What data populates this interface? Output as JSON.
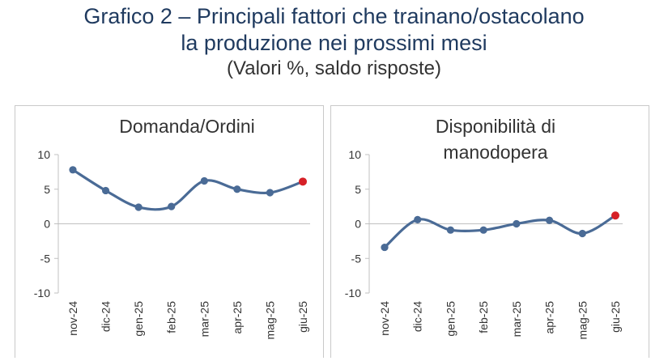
{
  "header": {
    "title_line1": "Grafico 2 – Principali fattori che trainano/ostacolano",
    "title_line2": "la produzione nei prossimi mesi",
    "subtitle": "(Valori %, saldo risposte)"
  },
  "colors": {
    "line": "#4a6b96",
    "last_point": "#d62027",
    "axis": "#c0c0c0",
    "text": "#333333",
    "title": "#1f3a5f"
  },
  "chart_data": [
    {
      "type": "line",
      "title_lines": [
        "Domanda/Ordini"
      ],
      "categories": [
        "nov-24",
        "dic-24",
        "gen-25",
        "feb-25",
        "mar-25",
        "apr-25",
        "mag-25",
        "giu-25"
      ],
      "series": [
        {
          "values": [
            7.8,
            4.8,
            2.4,
            2.5,
            6.2,
            5.0,
            4.5,
            6.1
          ]
        }
      ],
      "ylim": [
        -10,
        10
      ],
      "yticks": [
        10,
        5,
        0,
        -5,
        -10
      ],
      "grid": false,
      "xlabel": "",
      "ylabel": ""
    },
    {
      "type": "line",
      "title_lines": [
        "Disponibilità di",
        "manodopera"
      ],
      "categories": [
        "nov-24",
        "dic-24",
        "gen-25",
        "feb-25",
        "mar-25",
        "apr-25",
        "mag-25",
        "giu-25"
      ],
      "series": [
        {
          "values": [
            -3.4,
            0.6,
            -0.9,
            -0.9,
            0.0,
            0.5,
            -1.4,
            1.2
          ]
        }
      ],
      "ylim": [
        -10,
        10
      ],
      "yticks": [
        10,
        5,
        0,
        -5,
        -10
      ],
      "grid": false,
      "xlabel": "",
      "ylabel": ""
    }
  ]
}
